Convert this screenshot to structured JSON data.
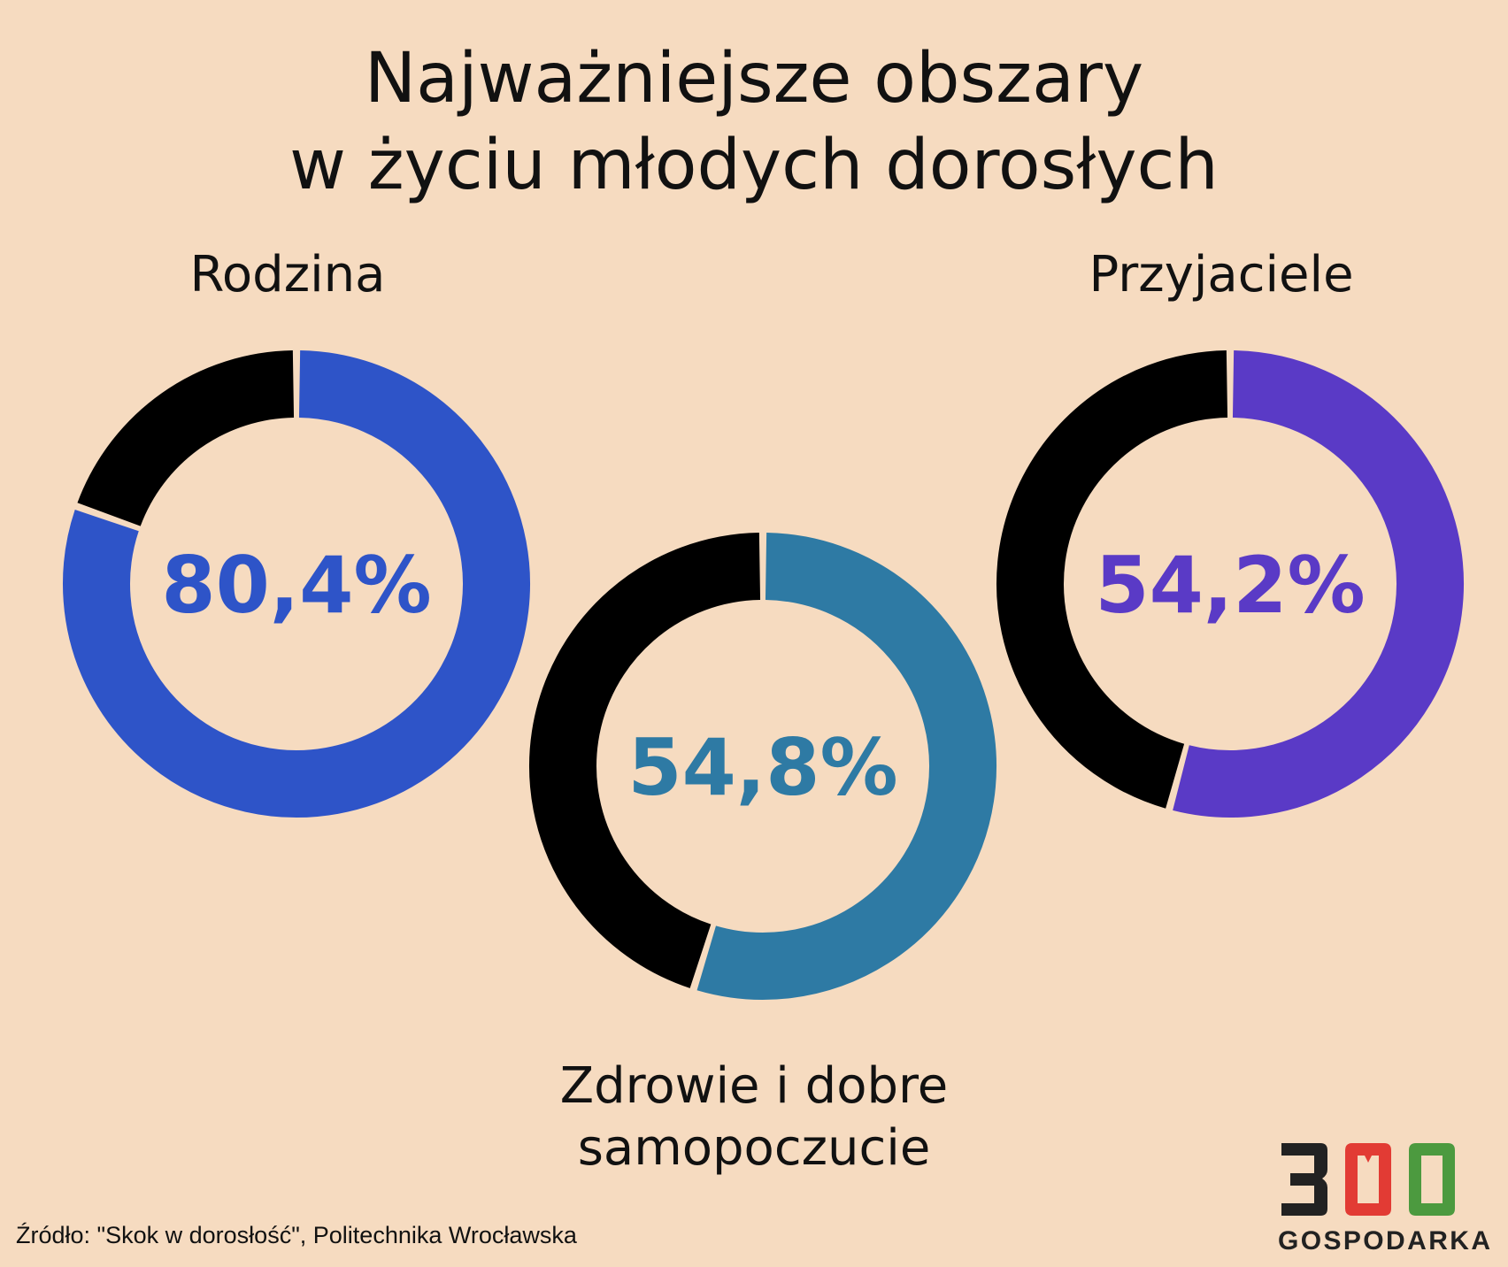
{
  "title": [
    "Najważniejsze obszary",
    "w życiu młodych dorosłych"
  ],
  "chart_data": {
    "type": "donut",
    "donuts": [
      {
        "name": "Rodzina",
        "value": 80.4,
        "label": "80,4%",
        "color": "#2e54c8"
      },
      {
        "name": "Zdrowie i dobre samopoczucie",
        "name_lines": [
          "Zdrowie i dobre",
          "samopoczucie"
        ],
        "value": 54.8,
        "label": "54,8%",
        "color": "#2e7aa4"
      },
      {
        "name": "Przyjaciele",
        "value": 54.2,
        "label": "54,2%",
        "color": "#5a3ac6"
      }
    ],
    "remainder_color": "#000000"
  },
  "source": "Źródło: \"Skok w dorosłość\", Politechnika Wrocławska",
  "logo": {
    "digits": [
      "3",
      "0",
      "0"
    ],
    "text": "GOSPODARKA",
    "colors": [
      "#222222",
      "#e23b34",
      "#4c9a3f"
    ]
  }
}
